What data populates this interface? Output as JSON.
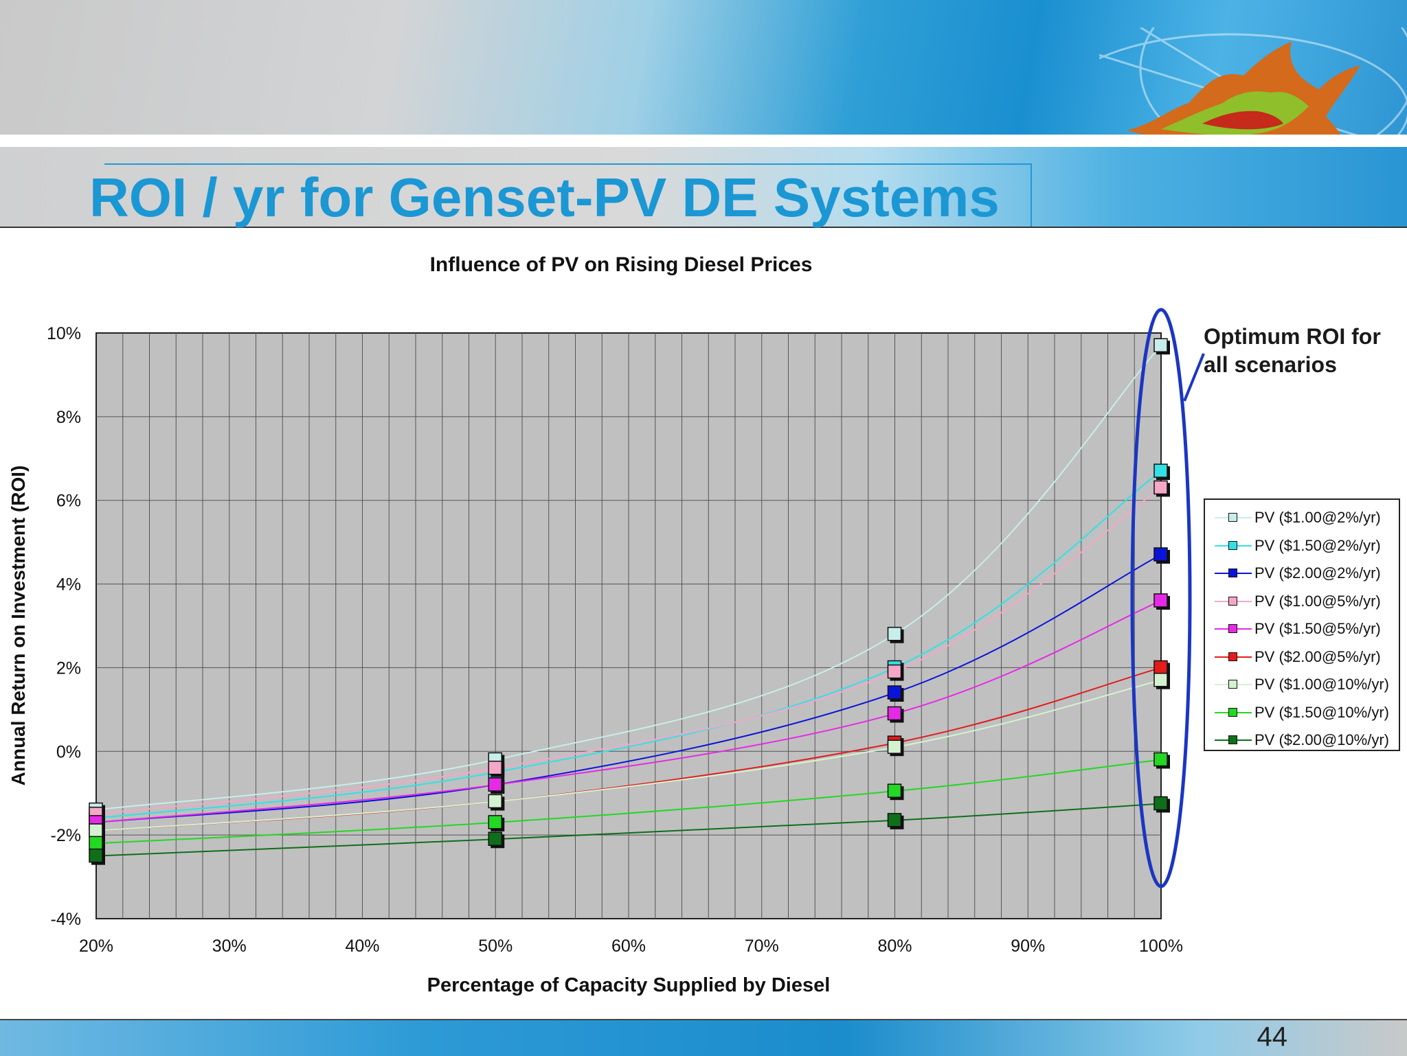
{
  "slide": {
    "title": "ROI / yr for Genset-PV DE Systems",
    "page_number": "44",
    "callout": "Optimum ROI for all scenarios"
  },
  "chart_data": {
    "type": "line",
    "title": "Influence of PV on Rising Diesel Prices",
    "xlabel": "Percentage of Capacity Supplied by Diesel",
    "ylabel": "Annual Return on Investment (ROI)",
    "x": [
      20,
      50,
      80,
      100
    ],
    "xlim": [
      20,
      100
    ],
    "ylim": [
      -4,
      10
    ],
    "x_ticks": [
      "20%",
      "30%",
      "40%",
      "50%",
      "60%",
      "70%",
      "80%",
      "90%",
      "100%"
    ],
    "y_ticks": [
      "10%",
      "8%",
      "6%",
      "4%",
      "2%",
      "0%",
      "-2%",
      "-4%"
    ],
    "grid": true,
    "legend_position": "right",
    "series": [
      {
        "name": "PV ($1.00@2%/yr)",
        "color": "#c8eeea",
        "values": [
          -1.4,
          -0.2,
          2.8,
          9.7
        ]
      },
      {
        "name": "PV ($1.50@2%/yr)",
        "color": "#33e0e6",
        "values": [
          -1.6,
          -0.5,
          2.0,
          6.7
        ]
      },
      {
        "name": "PV ($2.00@2%/yr)",
        "color": "#0a14d8",
        "values": [
          -1.7,
          -0.8,
          1.4,
          4.7
        ]
      },
      {
        "name": "PV ($1.00@5%/yr)",
        "color": "#f5a7c8",
        "values": [
          -1.5,
          -0.4,
          1.9,
          6.3
        ]
      },
      {
        "name": "PV ($1.50@5%/yr)",
        "color": "#e629e6",
        "values": [
          -1.7,
          -0.8,
          0.9,
          3.6
        ]
      },
      {
        "name": "PV ($2.00@5%/yr)",
        "color": "#e51b1b",
        "values": [
          -1.9,
          -1.2,
          0.2,
          2.0
        ]
      },
      {
        "name": "PV ($1.00@10%/yr)",
        "color": "#d4f2d0",
        "values": [
          -1.9,
          -1.2,
          0.1,
          1.7
        ]
      },
      {
        "name": "PV ($1.50@10%/yr)",
        "color": "#22d822",
        "values": [
          -2.2,
          -1.7,
          -0.95,
          -0.2
        ]
      },
      {
        "name": "PV ($2.00@10%/yr)",
        "color": "#0f6e1a",
        "values": [
          -2.5,
          -2.1,
          -1.65,
          -1.25
        ]
      }
    ]
  }
}
